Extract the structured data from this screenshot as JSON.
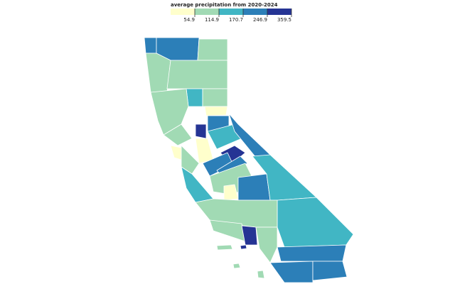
{
  "legend": {
    "title": "average precipitation from 2020-2024",
    "ticks": [
      54.9,
      114.9,
      170.7,
      246.9,
      359.5
    ],
    "colors": [
      "#ffffcc",
      "#a1dab4",
      "#41b6c4",
      "#2c7fb8",
      "#253494"
    ]
  },
  "counties": {
    "values": [
      200,
      190,
      80,
      100,
      90,
      140,
      85,
      100,
      40,
      110,
      300,
      45,
      210,
      150,
      230,
      280,
      220,
      200,
      50,
      95,
      130,
      75,
      40,
      215,
      140,
      150,
      80,
      90,
      330,
      100,
      200,
      210,
      205,
      100,
      100,
      300,
      100
    ]
  }
}
